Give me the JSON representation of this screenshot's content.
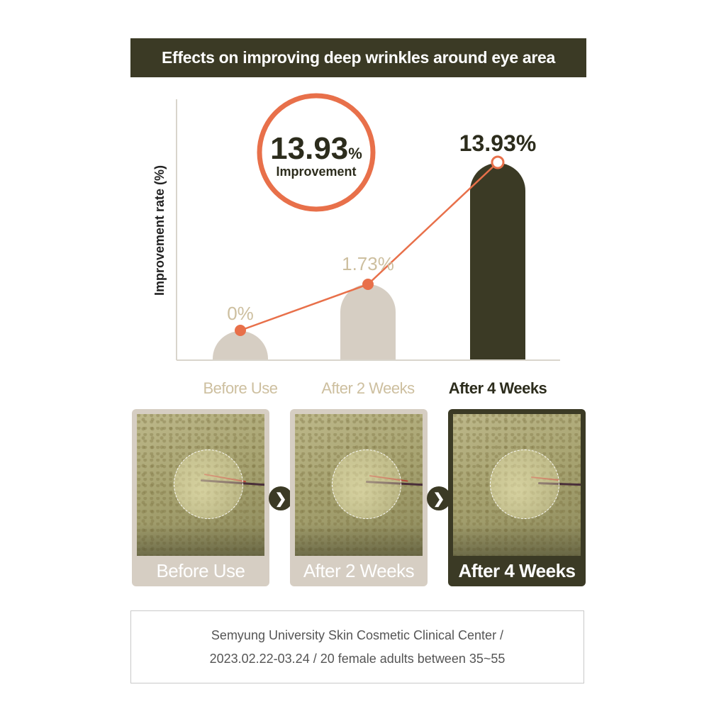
{
  "title": "Effects on improving deep wrinkles around eye area",
  "badge": {
    "value": "13.93",
    "unit": "%",
    "label": "Improvement"
  },
  "chart_data": {
    "type": "bar",
    "categories": [
      "Before Use",
      "After 2 Weeks",
      "After 4 Weeks"
    ],
    "values": [
      0,
      1.73,
      13.93
    ],
    "value_labels": [
      "0%",
      "1.73%",
      "13.93%"
    ],
    "ylabel": "Improvement rate (%)",
    "xlabel": "",
    "line_overlay": true,
    "colors": {
      "bar_light": "#d6cec3",
      "bar_dark": "#3b3a25",
      "line": "#e8704a",
      "label_light": "#cdbf9f",
      "label_dark": "#2c2c1c"
    }
  },
  "photos": [
    {
      "label": "Before Use",
      "style": "light"
    },
    {
      "label": "After 2 Weeks",
      "style": "light"
    },
    {
      "label": "After 4 Weeks",
      "style": "dark"
    }
  ],
  "arrow_glyph": "❯",
  "source": {
    "line1": "Semyung University Skin Cosmetic Clinical Center /",
    "line2": "2023.02.22-03.24 / 20 female adults between 35~55"
  }
}
